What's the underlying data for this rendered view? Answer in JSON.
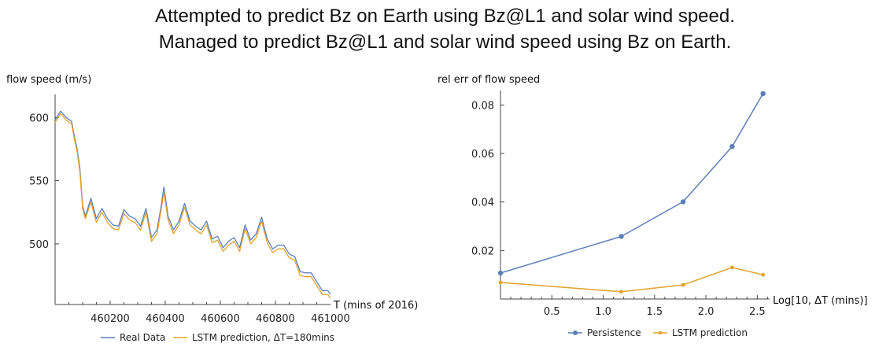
{
  "title_lines": [
    "Attempted to predict Bz on Earth using Bz@L1 and solar wind speed.",
    "Managed to predict Bz@L1 and solar wind speed using Bz on Earth."
  ],
  "colors": {
    "real": "#5b7fb9",
    "lstm": "#e3a12a",
    "axis": "#444444"
  },
  "chart_data": [
    {
      "type": "line",
      "ylabel": "flow speed (m/s)",
      "xlabel": "T (mins of 2016)",
      "xticks": [
        "460200",
        "460400",
        "460600",
        "460800",
        "461000"
      ],
      "yticks": [
        "500",
        "550",
        "600"
      ],
      "xlim": [
        460000,
        461000
      ],
      "ylim": [
        452,
        612
      ],
      "legend": [
        "Real Data",
        "LSTM prediction, ΔT=180mins"
      ],
      "legend_position": "bottom",
      "series": [
        {
          "name": "Real Data",
          "x": [
            460000,
            460020,
            460040,
            460060,
            460070,
            460080,
            460090,
            460100,
            460110,
            460130,
            460150,
            460170,
            460190,
            460210,
            460230,
            460250,
            460270,
            460290,
            460310,
            460330,
            460350,
            460370,
            460385,
            460395,
            460410,
            460430,
            460450,
            460470,
            460490,
            460510,
            460530,
            460550,
            460570,
            460590,
            460610,
            460630,
            460650,
            460670,
            460690,
            460710,
            460730,
            460750,
            460770,
            460790,
            460810,
            460830,
            460850,
            460870,
            460890,
            460910,
            460930,
            460950,
            460970,
            460990,
            461000
          ],
          "values": [
            598,
            605,
            600,
            597,
            585,
            575,
            560,
            530,
            522,
            536,
            520,
            528,
            520,
            515,
            514,
            527,
            522,
            520,
            514,
            528,
            505,
            511,
            530,
            545,
            522,
            511,
            518,
            532,
            518,
            514,
            511,
            518,
            504,
            506,
            497,
            502,
            505,
            497,
            515,
            503,
            508,
            521,
            504,
            496,
            499,
            499,
            492,
            490,
            478,
            477,
            477,
            470,
            463,
            463,
            460
          ]
        },
        {
          "name": "LSTM prediction, ΔT=180mins",
          "x": [
            460000,
            460020,
            460040,
            460060,
            460070,
            460080,
            460090,
            460100,
            460110,
            460130,
            460150,
            460170,
            460190,
            460210,
            460230,
            460250,
            460270,
            460290,
            460310,
            460330,
            460350,
            460370,
            460385,
            460395,
            460410,
            460430,
            460450,
            460470,
            460490,
            460510,
            460530,
            460550,
            460570,
            460590,
            460610,
            460630,
            460650,
            460670,
            460690,
            460710,
            460730,
            460750,
            460770,
            460790,
            460810,
            460830,
            460850,
            460870,
            460890,
            460910,
            460930,
            460950,
            460970,
            460990,
            461000
          ],
          "values": [
            596,
            603,
            598,
            595,
            583,
            573,
            557,
            528,
            520,
            533,
            517,
            525,
            517,
            512,
            511,
            524,
            519,
            517,
            511,
            525,
            502,
            508,
            527,
            541,
            519,
            508,
            515,
            529,
            515,
            511,
            508,
            515,
            501,
            503,
            494,
            499,
            502,
            494,
            512,
            500,
            505,
            518,
            501,
            493,
            496,
            496,
            489,
            487,
            475,
            474,
            474,
            467,
            460,
            460,
            457
          ]
        }
      ]
    },
    {
      "type": "line",
      "ylabel": "rel err of flow speed",
      "xlabel": "Log[10, ΔT (mins)]",
      "xticks": [
        "0.5",
        "1.0",
        "1.5",
        "2.0",
        "2.5"
      ],
      "yticks": [
        "0.02",
        "0.04",
        "0.06",
        "0.08"
      ],
      "xlim": [
        0,
        2.62
      ],
      "ylim": [
        0,
        0.086
      ],
      "legend": [
        "Persistence",
        "LSTM prediction"
      ],
      "legend_position": "bottom",
      "series": [
        {
          "name": "Persistence",
          "x": [
            0,
            1.176,
            1.778,
            2.255,
            2.556
          ],
          "values": [
            0.0107,
            0.0258,
            0.0401,
            0.0629,
            0.0847
          ]
        },
        {
          "name": "LSTM prediction",
          "x": [
            0,
            1.176,
            1.778,
            2.255,
            2.556
          ],
          "values": [
            0.0068,
            0.003,
            0.0058,
            0.013,
            0.01
          ]
        }
      ]
    }
  ]
}
